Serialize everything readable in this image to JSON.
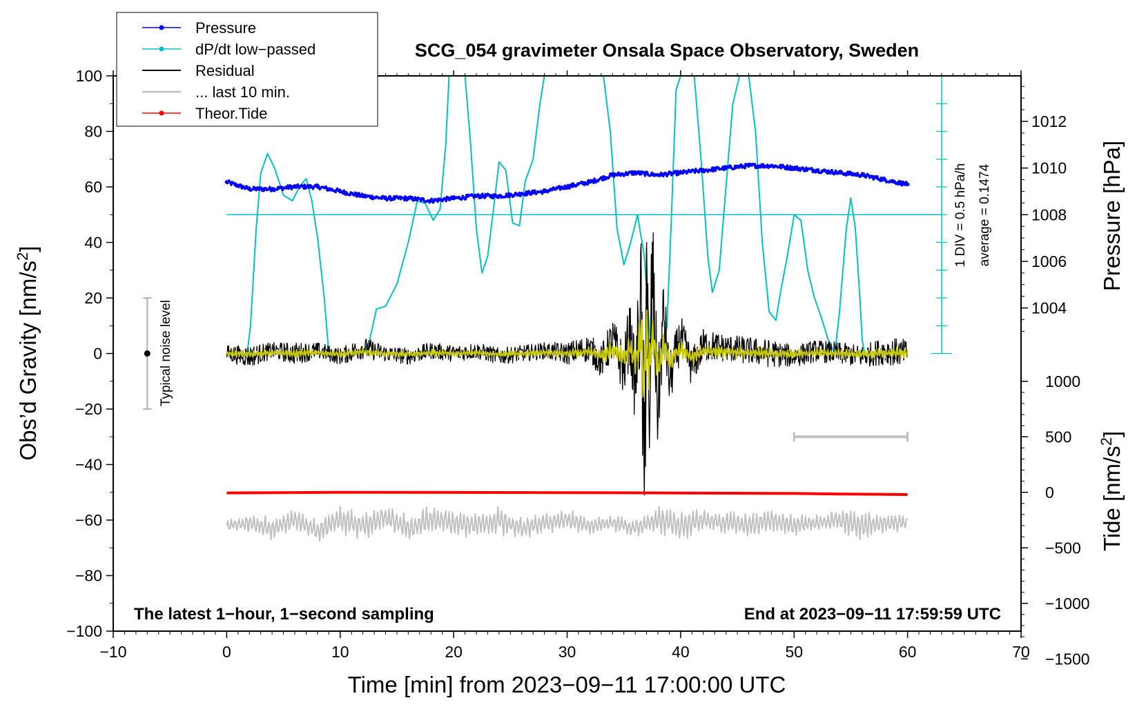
{
  "chart_data": {
    "type": "line",
    "title": "SCG_054 gravimeter Onsala Space Observatory, Sweden",
    "xlabel": "Time [min] from 2023−09−11 17:00:00 UTC",
    "ylabel_left": "Obs’d Gravity [nm/s",
    "ylabel_left_sup": "2",
    "ylabel_left_end": "]",
    "ylabel_right_pressure": "Pressure [hPa]",
    "ylabel_right_tide": "Tide [nm/s",
    "ylabel_right_tide_sup": "2",
    "ylabel_right_tide_end": "]",
    "xlim": [
      -10,
      70
    ],
    "ylim": [
      -100,
      100
    ],
    "x_ticks": [
      "−10",
      "0",
      "10",
      "20",
      "30",
      "40",
      "50",
      "60",
      "70"
    ],
    "x_tick_values": [
      -10,
      0,
      10,
      20,
      30,
      40,
      50,
      60,
      70
    ],
    "y_ticks": [
      "100",
      "80",
      "60",
      "40",
      "20",
      "0",
      "−20",
      "−40",
      "−60",
      "−80",
      "−100"
    ],
    "y_tick_values": [
      100,
      80,
      60,
      40,
      20,
      0,
      -20,
      -40,
      -60,
      -80,
      -100
    ],
    "pressure_ticks": [
      "1012",
      "1010",
      "1008",
      "1006",
      "1004"
    ],
    "pressure_tick_values": [
      1012,
      1010,
      1008,
      1006,
      1004
    ],
    "pressure_axis_map": {
      "hpa_at_gravity_50": 1008,
      "gravity_per_hpa": 8.4
    },
    "tide_ticks": [
      "1000",
      "500",
      "0",
      "−500",
      "−1000",
      "−1500"
    ],
    "tide_tick_values": [
      1000,
      500,
      0,
      -500,
      -1000,
      -1500
    ],
    "tide_axis_map": {
      "tide_at_gravity_minus_50": 0,
      "gravity_per_unit": 0.04
    },
    "legend": [
      {
        "label": "Pressure",
        "color": "#0000ff",
        "marker": true
      },
      {
        "label": "dP/dt low−passed",
        "color": "#00c0c0",
        "marker": true
      },
      {
        "label": "Residual",
        "color": "#000000",
        "marker": false
      },
      {
        "label": "... last 10 min.",
        "color": "#c0c0c0",
        "marker": false
      },
      {
        "label": "Theor.Tide",
        "color": "#ff0000",
        "marker": true
      }
    ],
    "footer_left": "The latest 1−hour, 1−second sampling",
    "footer_right": "End at 2023−09−11 17:59:59 UTC",
    "noise_label": "Typical noise level",
    "noise_range": [
      -20,
      20
    ],
    "dpdt_scale_label": "1 DIV = 0.5 hPa/h",
    "dpdt_average_label": "average = 0.1474",
    "dpdt_baseline_gravity": 50,
    "dpdt_axis_range_gravity": [
      0,
      100
    ],
    "last10_bar_x": [
      50,
      60
    ],
    "last10_bar_tide": 500,
    "series": [
      {
        "name": "Pressure",
        "unit": "hPa",
        "color": "#0000ff",
        "x": [
          0,
          2,
          4,
          6,
          8,
          10,
          12,
          14,
          16,
          18,
          20,
          22,
          24,
          26,
          28,
          30,
          32,
          34,
          36,
          38,
          40,
          42,
          44,
          46,
          48,
          50,
          52,
          54,
          56,
          58,
          60
        ],
        "values": [
          1009.4,
          1009.1,
          1009.1,
          1009.2,
          1009.2,
          1009.0,
          1008.8,
          1008.7,
          1008.7,
          1008.6,
          1008.7,
          1008.8,
          1008.8,
          1008.9,
          1009.0,
          1009.2,
          1009.4,
          1009.7,
          1009.8,
          1009.7,
          1009.8,
          1009.9,
          1010.0,
          1010.1,
          1010.1,
          1010.0,
          1009.9,
          1009.8,
          1009.7,
          1009.5,
          1009.3
        ]
      },
      {
        "name": "dP/dt low-passed",
        "unit": "gravity-axis units",
        "color": "#00c0c0",
        "x": [
          0.0,
          1.0,
          1.8,
          2.1,
          2.6,
          3.0,
          3.6,
          4.2,
          5.0,
          5.8,
          6.4,
          7.0,
          7.5,
          8.0,
          8.6,
          9.0,
          10.0,
          11.0,
          12.0,
          12.6,
          13.2,
          14.0,
          15.0,
          16.0,
          16.8,
          17.5,
          18.2,
          18.8,
          19.3,
          19.6,
          20.0,
          20.6,
          21.0,
          21.5,
          22.0,
          22.5,
          23.0,
          23.6,
          24.0,
          24.6,
          25.2,
          25.8,
          26.3,
          27.0,
          27.6,
          28.0,
          28.4,
          28.8,
          29.2,
          30.0,
          31.0,
          32.0,
          32.6,
          33.2,
          33.8,
          34.4,
          35.0,
          35.6,
          36.2,
          36.8,
          37.4,
          38.0,
          38.4,
          38.8,
          39.2,
          39.6,
          40.0,
          40.4,
          40.8,
          41.2,
          41.8,
          42.4,
          42.8,
          43.4,
          44.0,
          44.6,
          45.2,
          45.6,
          46.0,
          46.6,
          47.2,
          47.8,
          48.4,
          48.8,
          49.4,
          50.0,
          50.6,
          51.2,
          51.8,
          52.4,
          53.0,
          53.6,
          54.0,
          54.6,
          55.0,
          55.4,
          55.8,
          56.0,
          56.2
        ],
        "values": [
          0,
          0,
          0,
          10,
          45,
          65,
          72,
          67,
          57,
          55,
          60,
          63,
          55,
          42,
          20,
          0,
          0,
          0,
          0,
          5,
          16,
          17,
          25,
          40,
          55,
          54,
          48,
          52,
          75,
          100,
          100,
          100,
          100,
          75,
          45,
          29,
          35,
          55,
          69,
          66,
          47,
          46,
          62,
          70,
          90,
          100,
          100,
          100,
          100,
          100,
          100,
          100,
          100,
          100,
          80,
          45,
          32,
          40,
          50,
          35,
          0,
          0,
          0,
          10,
          50,
          95,
          100,
          100,
          100,
          100,
          70,
          35,
          22,
          30,
          60,
          90,
          100,
          100,
          100,
          80,
          40,
          15,
          12,
          22,
          35,
          50,
          48,
          30,
          20,
          13,
          5,
          0,
          15,
          45,
          56,
          45,
          20,
          5,
          0
        ]
      },
      {
        "name": "Residual",
        "unit": "nm/s2",
        "color": "#000000",
        "x": [
          0,
          2,
          4,
          6,
          8,
          10,
          12,
          14,
          16,
          18,
          20,
          22,
          24,
          26,
          28,
          30,
          32,
          33,
          34,
          35,
          35.5,
          36,
          36.5,
          36.8,
          37,
          37.2,
          37.5,
          38,
          38.5,
          39,
          40,
          41,
          42,
          44,
          46,
          48,
          50,
          52,
          54,
          56,
          58,
          60
        ],
        "values": [
          0,
          -1,
          1,
          0,
          1,
          -1,
          2,
          0,
          -1,
          1,
          0,
          1,
          -1,
          0,
          1,
          0,
          2,
          -3,
          5,
          -6,
          8,
          -12,
          20,
          -50,
          40,
          -25,
          30,
          -20,
          15,
          -10,
          6,
          -5,
          3,
          2,
          1,
          0,
          -1,
          1,
          0,
          -1,
          1,
          0
        ],
        "amplitude_envelope": [
          3,
          4,
          3,
          4,
          3,
          3,
          4,
          3,
          3,
          3,
          3,
          3,
          3,
          3,
          3,
          4,
          5,
          6,
          8,
          10,
          12,
          14,
          25,
          45,
          40,
          30,
          25,
          18,
          14,
          10,
          8,
          7,
          6,
          5,
          5,
          5,
          4,
          4,
          4,
          4,
          5,
          5
        ]
      },
      {
        "name": "... last 10 min.",
        "unit": "nm/s2",
        "color": "#c0c0c0",
        "x": [
          0,
          2,
          4,
          6,
          8,
          10,
          12,
          14,
          16,
          18,
          20,
          22,
          24,
          26,
          28,
          30,
          32,
          34,
          36,
          38,
          40,
          42,
          44,
          46,
          48,
          50,
          52,
          54,
          56,
          58,
          60
        ],
        "values": [
          -62,
          -61,
          -63,
          -60,
          -64,
          -60,
          -62,
          -59,
          -63,
          -60,
          -61,
          -62,
          -60,
          -63,
          -61,
          -60,
          -62,
          -61,
          -63,
          -60,
          -62,
          -60,
          -61,
          -62,
          -60,
          -62,
          -61,
          -60,
          -62,
          -61,
          -61
        ],
        "amplitude_envelope": [
          2,
          3,
          4,
          4,
          4,
          5,
          5,
          5,
          5,
          5,
          5,
          4,
          5,
          4,
          4,
          4,
          3,
          3,
          3,
          5,
          5,
          4,
          4,
          5,
          4,
          4,
          3,
          4,
          6,
          4,
          3
        ]
      },
      {
        "name": "Theor.Tide",
        "unit": "nm/s2",
        "color": "#ff0000",
        "x": [
          0,
          10,
          20,
          30,
          40,
          50,
          54,
          60
        ],
        "values": [
          -5,
          0,
          -1,
          -3,
          -6,
          -10,
          -15,
          -20
        ]
      }
    ],
    "residual_smoothed_color": "#c8c800"
  }
}
